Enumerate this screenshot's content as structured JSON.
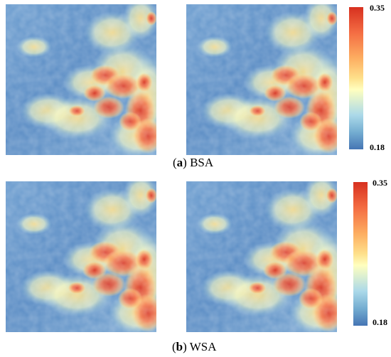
{
  "panels": [
    {
      "id": "a",
      "caption_open": "(",
      "caption_label": "a",
      "caption_close": ")",
      "caption_text": "BSA",
      "colorbar": {
        "max_label": "0.35",
        "min_label": "0.18"
      }
    },
    {
      "id": "b",
      "caption_open": "(",
      "caption_label": "b",
      "caption_close": ")",
      "caption_text": "WSA",
      "colorbar": {
        "max_label": "0.35",
        "min_label": "0.18"
      }
    }
  ],
  "colormap": {
    "high": "#d7301f",
    "mid": "#ffffbf",
    "low": "#4575b4"
  }
}
